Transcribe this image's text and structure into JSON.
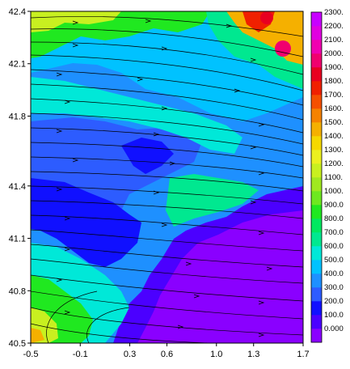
{
  "chart_data": {
    "type": "heatmap",
    "title": "",
    "xlabel": "",
    "ylabel": "",
    "x_ticks": [
      "-0.5",
      "-0.1",
      "0.3",
      "0.6",
      "1.0",
      "1.3",
      "1.7"
    ],
    "y_ticks": [
      "42.4",
      "42.1",
      "41.8",
      "41.4",
      "41.1",
      "40.8",
      "40.5"
    ],
    "xlim": [
      -0.5,
      1.7
    ],
    "ylim": [
      40.5,
      42.4
    ],
    "overlay": "streamlines",
    "colorbar": {
      "labels": [
        "0.000",
        "100.0",
        "200.0",
        "300.0",
        "400.0",
        "500.0",
        "600.0",
        "700.0",
        "800.0",
        "900.0",
        "1000.",
        "1100.",
        "1200.",
        "1300.",
        "1400.",
        "1500.",
        "1600.",
        "1700.",
        "1800.",
        "1900.",
        "2000.",
        "2100.",
        "2200.",
        "2300."
      ],
      "colors": [
        "#8a00ff",
        "#4b00ff",
        "#1010ff",
        "#2d5cff",
        "#1e90ff",
        "#00c2ff",
        "#00e8d8",
        "#00e890",
        "#00e860",
        "#20e820",
        "#6ee820",
        "#a0e820",
        "#c8f020",
        "#ecf020",
        "#f5d800",
        "#f5b000",
        "#f58200",
        "#f55000",
        "#f02000",
        "#e80020",
        "#f0006e",
        "#f000b0",
        "#e000e0",
        "#c800ff"
      ]
    }
  }
}
